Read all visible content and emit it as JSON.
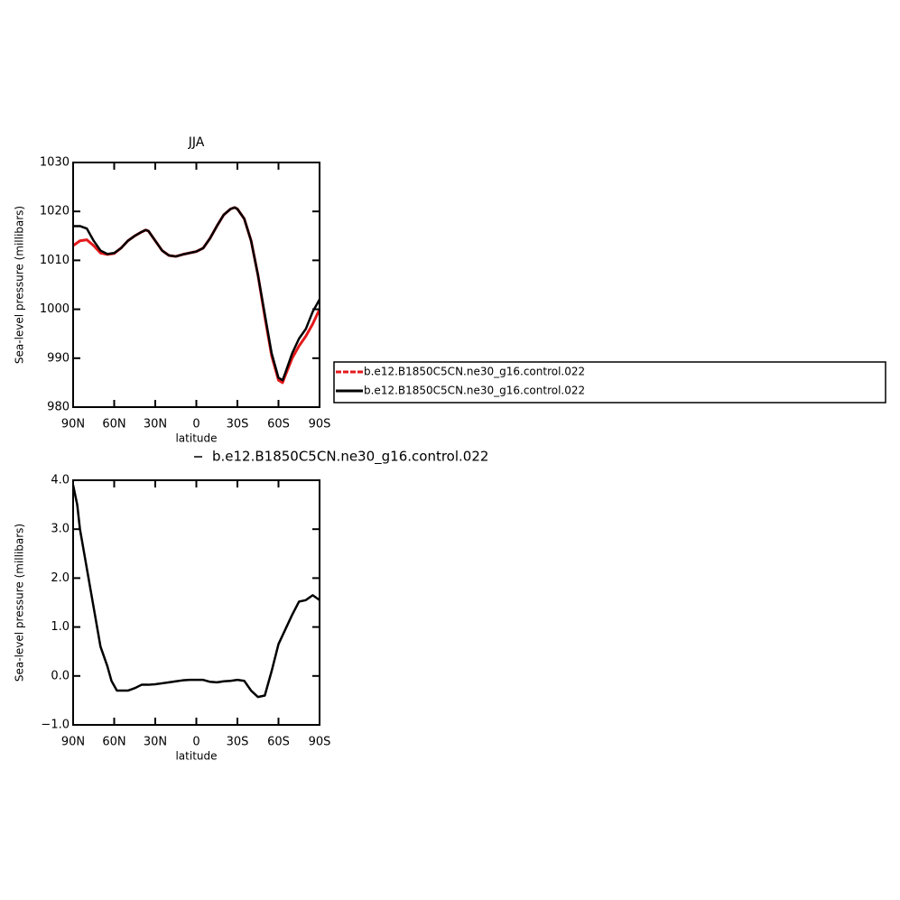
{
  "chart_data": [
    {
      "type": "line",
      "title": "JJA",
      "xlabel": "latitude",
      "ylabel": "Sea-level pressure (millibars)",
      "x": [
        90,
        85,
        80,
        75,
        70,
        65,
        60,
        55,
        50,
        45,
        40,
        37,
        35,
        30,
        25,
        20,
        15,
        10,
        5,
        0,
        -5,
        -10,
        -15,
        -20,
        -25,
        -28,
        -30,
        -35,
        -40,
        -45,
        -50,
        -55,
        -60,
        -63,
        -65,
        -70,
        -75,
        -80,
        -85,
        -90
      ],
      "series": [
        {
          "name": "b.e12.B1850C5CN.ne30_g16.control.022",
          "color": "#e41a1c",
          "values": [
            1013,
            1014,
            1014.2,
            1013,
            1011.5,
            1011.2,
            1011.4,
            1012.5,
            1014,
            1015,
            1015.8,
            1016.2,
            1016,
            1014,
            1012,
            1011,
            1010.8,
            1011.2,
            1011.5,
            1011.8,
            1012.5,
            1014.5,
            1017,
            1019.3,
            1020.5,
            1020.8,
            1020.5,
            1018.5,
            1014,
            1007,
            998.5,
            990.5,
            985.5,
            985,
            986.5,
            990,
            992.5,
            994.5,
            997,
            1000
          ]
        },
        {
          "name": "b.e12.B1850C5CN.ne30_g16.control.022",
          "color": "#000000",
          "values": [
            1017,
            1017,
            1016.5,
            1014,
            1012,
            1011.3,
            1011.5,
            1012.5,
            1014,
            1015,
            1015.8,
            1016.2,
            1016,
            1014,
            1012,
            1011,
            1010.8,
            1011.2,
            1011.5,
            1011.8,
            1012.5,
            1014.5,
            1017,
            1019.3,
            1020.5,
            1020.8,
            1020.5,
            1018.5,
            1014,
            1007,
            999,
            991,
            986,
            985.5,
            987,
            991,
            994,
            996,
            999.5,
            1002
          ]
        }
      ],
      "xlim": [
        90,
        -90
      ],
      "xticks": [
        {
          "value": 90,
          "label": "90N"
        },
        {
          "value": 60,
          "label": "60N"
        },
        {
          "value": 30,
          "label": "30N"
        },
        0,
        {
          "value": -30,
          "label": "30S"
        },
        {
          "value": -60,
          "label": "60S"
        },
        {
          "value": -90,
          "label": "90S"
        }
      ],
      "ylim": [
        980,
        1030
      ],
      "yticks": [
        980,
        990,
        1000,
        1010,
        1020,
        1030
      ],
      "legend": "right"
    },
    {
      "type": "line",
      "xlabel": "latitude",
      "ylabel": "Sea-level pressure (millibars)",
      "x": [
        90,
        87,
        85,
        80,
        75,
        70,
        65,
        62,
        58,
        55,
        50,
        45,
        40,
        35,
        30,
        25,
        20,
        15,
        10,
        5,
        0,
        -5,
        -10,
        -15,
        -20,
        -25,
        -30,
        -35,
        -40,
        -45,
        -50,
        -55,
        -60,
        -65,
        -70,
        -75,
        -80,
        -85,
        -90
      ],
      "series": [
        {
          "name": "b.e12.B1850C5CN.ne30_g16.control.022",
          "color": "#000000",
          "values": [
            3.9,
            3.5,
            3.0,
            2.2,
            1.4,
            0.6,
            0.2,
            -0.1,
            -0.3,
            -0.3,
            -0.3,
            -0.25,
            -0.18,
            -0.18,
            -0.17,
            -0.15,
            -0.13,
            -0.11,
            -0.09,
            -0.08,
            -0.08,
            -0.08,
            -0.12,
            -0.13,
            -0.11,
            -0.1,
            -0.08,
            -0.1,
            -0.3,
            -0.43,
            -0.4,
            0.1,
            0.65,
            0.95,
            1.25,
            1.52,
            1.55,
            1.65,
            1.55
          ]
        }
      ],
      "xlim": [
        90,
        -90
      ],
      "xticks": [
        {
          "value": 90,
          "label": "90N"
        },
        {
          "value": 60,
          "label": "60N"
        },
        {
          "value": 30,
          "label": "30N"
        },
        0,
        {
          "value": -30,
          "label": "30S"
        },
        {
          "value": -60,
          "label": "60S"
        },
        {
          "value": -90,
          "label": "90S"
        }
      ],
      "ylim": [
        -1,
        4
      ],
      "yticks": [
        {
          "value": -1,
          "label": "−1.0"
        },
        {
          "value": 0,
          "label": "0.0"
        },
        {
          "value": 1,
          "label": "1.0"
        },
        {
          "value": 2,
          "label": "2.0"
        },
        {
          "value": 3,
          "label": "3.0"
        },
        {
          "value": 4,
          "label": "4.0"
        }
      ],
      "legend": "top"
    }
  ]
}
